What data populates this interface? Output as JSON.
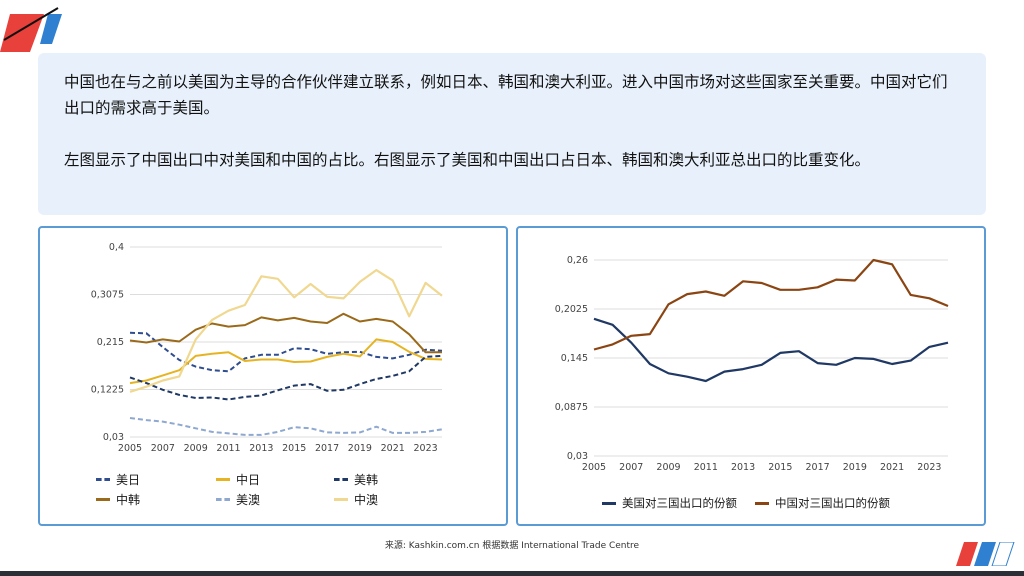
{
  "text": {
    "paragraph1": "中国也在与之前以美国为主导的合作伙伴建立联系，例如日本、韩国和澳大利亚。进入中国市场对这些国家至关重要。中国对它们出口的需求高于美国。",
    "paragraph2": "左图显示了中国出口中对美国和中国的占比。右图显示了美国和中国出口占日本、韩国和澳大利亚总出口的比重变化。"
  },
  "source": "来源: Kashkin.com.cn 根据数据 International Trade Centre",
  "colors": {
    "panel_border": "#5b9bd5",
    "textbox_bg": "#e8f1fb",
    "grid": "#dddddd",
    "us_navy": "#1f3864",
    "china_brown": "#8b4513",
    "us_jp": "#2f4d8f",
    "cn_jp": "#e6b422",
    "us_kr": "#1f3864",
    "cn_kr": "#9a6a1a",
    "us_au": "#8fa8d0",
    "cn_au": "#f0d890"
  },
  "chart_data": [
    {
      "type": "line",
      "title": "",
      "x": [
        2005,
        2006,
        2007,
        2008,
        2009,
        2010,
        2011,
        2012,
        2013,
        2014,
        2015,
        2016,
        2017,
        2018,
        2019,
        2020,
        2021,
        2022,
        2023,
        2024
      ],
      "xticks": [
        "2005",
        "2007",
        "2009",
        "2011",
        "2013",
        "2015",
        "2017",
        "2019",
        "2021",
        "2023"
      ],
      "yticks": [
        "0,03",
        "0,1225",
        "0,215",
        "0,3075",
        "0,4"
      ],
      "ylim": [
        0.03,
        0.4
      ],
      "series": [
        {
          "name": "美日",
          "color": "#2f4d8f",
          "dash": true,
          "width": 2,
          "values": [
            0.233,
            0.232,
            0.205,
            0.18,
            0.167,
            0.16,
            0.158,
            0.183,
            0.19,
            0.19,
            0.203,
            0.201,
            0.192,
            0.195,
            0.196,
            0.186,
            0.183,
            0.19,
            0.2,
            0.198
          ]
        },
        {
          "name": "中日",
          "color": "#e6b422",
          "dash": false,
          "width": 2,
          "values": [
            0.135,
            0.14,
            0.15,
            0.16,
            0.188,
            0.192,
            0.195,
            0.178,
            0.181,
            0.181,
            0.176,
            0.177,
            0.186,
            0.192,
            0.187,
            0.22,
            0.215,
            0.196,
            0.182,
            0.181
          ]
        },
        {
          "name": "美韩",
          "color": "#1f3864",
          "dash": true,
          "width": 2,
          "values": [
            0.146,
            0.135,
            0.122,
            0.112,
            0.106,
            0.107,
            0.103,
            0.108,
            0.111,
            0.121,
            0.13,
            0.133,
            0.12,
            0.122,
            0.133,
            0.143,
            0.149,
            0.158,
            0.186,
            0.188
          ]
        },
        {
          "name": "中韩",
          "color": "#9a6a1a",
          "dash": false,
          "width": 2,
          "values": [
            0.218,
            0.214,
            0.22,
            0.216,
            0.239,
            0.251,
            0.245,
            0.248,
            0.263,
            0.257,
            0.262,
            0.255,
            0.252,
            0.27,
            0.255,
            0.26,
            0.255,
            0.23,
            0.195,
            0.195
          ]
        },
        {
          "name": "美澳",
          "color": "#8fa8d0",
          "dash": true,
          "width": 2,
          "values": [
            0.067,
            0.063,
            0.06,
            0.054,
            0.047,
            0.04,
            0.037,
            0.034,
            0.034,
            0.04,
            0.049,
            0.047,
            0.039,
            0.038,
            0.039,
            0.05,
            0.038,
            0.038,
            0.04,
            0.045
          ]
        },
        {
          "name": "中澳",
          "color": "#f0d890",
          "dash": false,
          "width": 2.2,
          "values": [
            0.118,
            0.128,
            0.14,
            0.148,
            0.22,
            0.258,
            0.276,
            0.287,
            0.343,
            0.338,
            0.302,
            0.328,
            0.303,
            0.3,
            0.332,
            0.355,
            0.335,
            0.265,
            0.33,
            0.305
          ]
        }
      ]
    },
    {
      "type": "line",
      "title": "",
      "x": [
        2005,
        2006,
        2007,
        2008,
        2009,
        2010,
        2011,
        2012,
        2013,
        2014,
        2015,
        2016,
        2017,
        2018,
        2019,
        2020,
        2021,
        2022,
        2023,
        2024
      ],
      "xticks": [
        "2005",
        "2007",
        "2009",
        "2011",
        "2013",
        "2015",
        "2017",
        "2019",
        "2021",
        "2023"
      ],
      "yticks": [
        "0,03",
        "0,0875",
        "0,145",
        "0,2025",
        "0,26"
      ],
      "ylim": [
        0.03,
        0.26
      ],
      "series": [
        {
          "name": "美国对三国出口的份额",
          "color": "#1f3864",
          "dash": false,
          "width": 2.2,
          "values": [
            0.191,
            0.184,
            0.163,
            0.138,
            0.127,
            0.123,
            0.118,
            0.129,
            0.132,
            0.137,
            0.151,
            0.153,
            0.139,
            0.137,
            0.145,
            0.144,
            0.138,
            0.142,
            0.158,
            0.163
          ]
        },
        {
          "name": "中国对三国出口的份额",
          "color": "#8b4513",
          "dash": false,
          "width": 2.2,
          "values": [
            0.155,
            0.161,
            0.171,
            0.173,
            0.208,
            0.22,
            0.223,
            0.218,
            0.235,
            0.233,
            0.225,
            0.225,
            0.228,
            0.237,
            0.236,
            0.26,
            0.255,
            0.219,
            0.215,
            0.206
          ]
        }
      ]
    }
  ]
}
